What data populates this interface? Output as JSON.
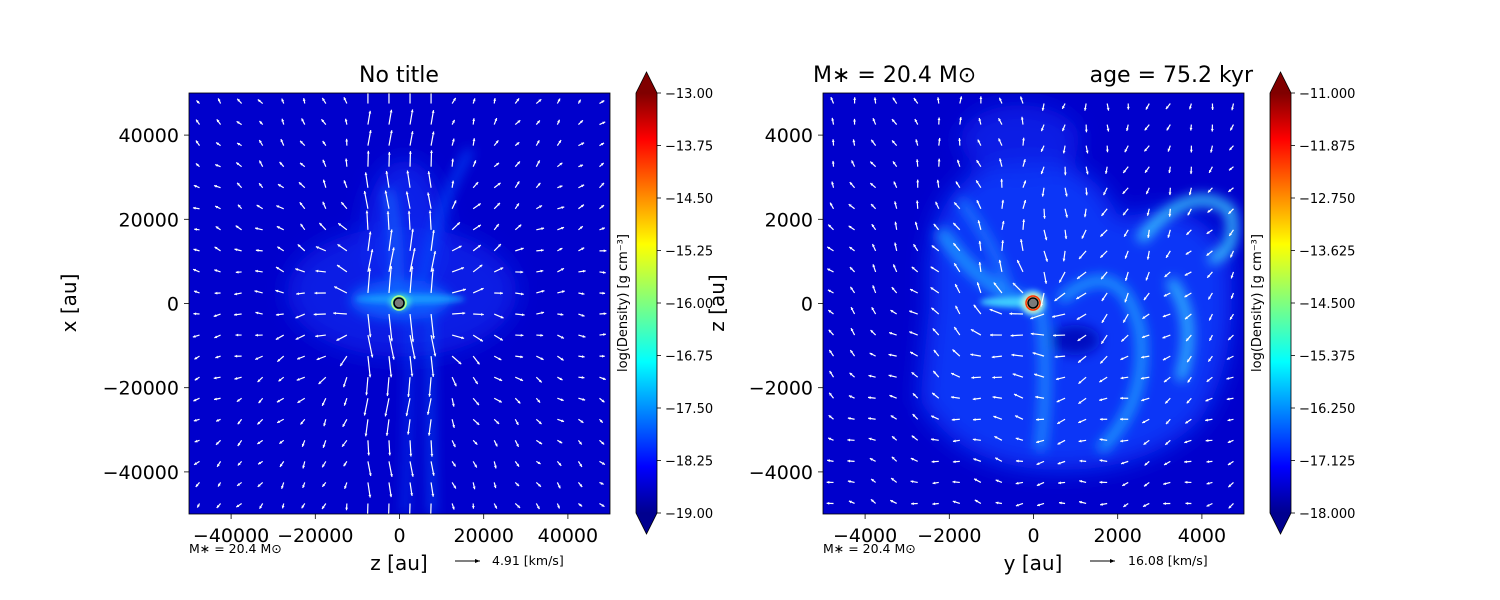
{
  "chart_data": [
    {
      "type": "heatmap",
      "title": "No title",
      "xlabel": "z [au]",
      "ylabel": "x [au]",
      "xlim": [
        -50000,
        50000
      ],
      "ylim": [
        -50000,
        50000
      ],
      "xticks": [
        -40000,
        -20000,
        0,
        20000,
        40000
      ],
      "yticks": [
        -40000,
        -20000,
        0,
        20000,
        40000
      ],
      "xtick_labels": [
        "−40000",
        "−20000",
        "0",
        "20000",
        "40000"
      ],
      "ytick_labels": [
        "−40000",
        "−20000",
        "0",
        "20000",
        "40000"
      ],
      "colorbar": {
        "label": "log(Density) [g cm⁻³]",
        "range": [
          -19.0,
          -13.0
        ],
        "ticks": [
          -13.0,
          -13.75,
          -14.5,
          -15.25,
          -16.0,
          -16.75,
          -17.5,
          -18.25,
          -19.0
        ],
        "tick_labels": [
          "−13.00",
          "−13.75",
          "−14.50",
          "−15.25",
          "−16.00",
          "−16.75",
          "−17.50",
          "−18.25",
          "−19.00"
        ]
      },
      "annotation": "M∗ = 20.4 M⊙",
      "quiver_key": "4.91 [km/s]",
      "star_position": [
        0,
        0
      ]
    },
    {
      "type": "heatmap",
      "title_left": "M∗ = 20.4 M⊙",
      "title_right": "age = 75.2 kyr",
      "xlabel": "y [au]",
      "ylabel": "z [au]",
      "xlim": [
        -5000,
        5000
      ],
      "ylim": [
        -5000,
        5000
      ],
      "xticks": [
        -4000,
        -2000,
        0,
        2000,
        4000
      ],
      "yticks": [
        -4000,
        -2000,
        0,
        2000,
        4000
      ],
      "xtick_labels": [
        "−4000",
        "−2000",
        "0",
        "2000",
        "4000"
      ],
      "ytick_labels": [
        "−4000",
        "−2000",
        "0",
        "2000",
        "4000"
      ],
      "colorbar": {
        "label": "log(Density) [g cm⁻³]",
        "range": [
          -18.0,
          -11.0
        ],
        "ticks": [
          -11.0,
          -11.875,
          -12.75,
          -13.625,
          -14.5,
          -15.375,
          -16.25,
          -17.125,
          -18.0
        ],
        "tick_labels": [
          "−11.000",
          "−11.875",
          "−12.750",
          "−13.625",
          "−14.500",
          "−15.375",
          "−16.250",
          "−17.125",
          "−18.000"
        ]
      },
      "annotation": "M∗ = 20.4 M⊙",
      "quiver_key": "16.08 [km/s]",
      "star_position": [
        0,
        0
      ]
    }
  ]
}
